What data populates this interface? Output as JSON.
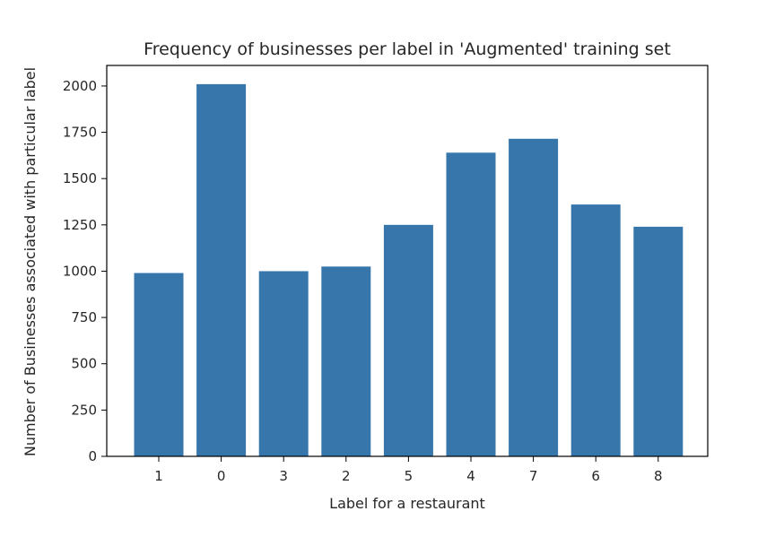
{
  "chart_data": {
    "type": "bar",
    "title": "Frequency of businesses per label in 'Augmented' training set",
    "xlabel": "Label for a restaurant",
    "ylabel": "Number of Businesses associated with particular label",
    "categories": [
      "1",
      "0",
      "3",
      "2",
      "5",
      "4",
      "7",
      "6",
      "8"
    ],
    "values": [
      990,
      2010,
      1000,
      1025,
      1250,
      1640,
      1715,
      1360,
      1240
    ],
    "yticks": [
      0,
      250,
      500,
      750,
      1000,
      1250,
      1500,
      1750,
      2000
    ],
    "ylim": [
      0,
      2111
    ],
    "bar_color": "#3776ab",
    "grid": false
  }
}
